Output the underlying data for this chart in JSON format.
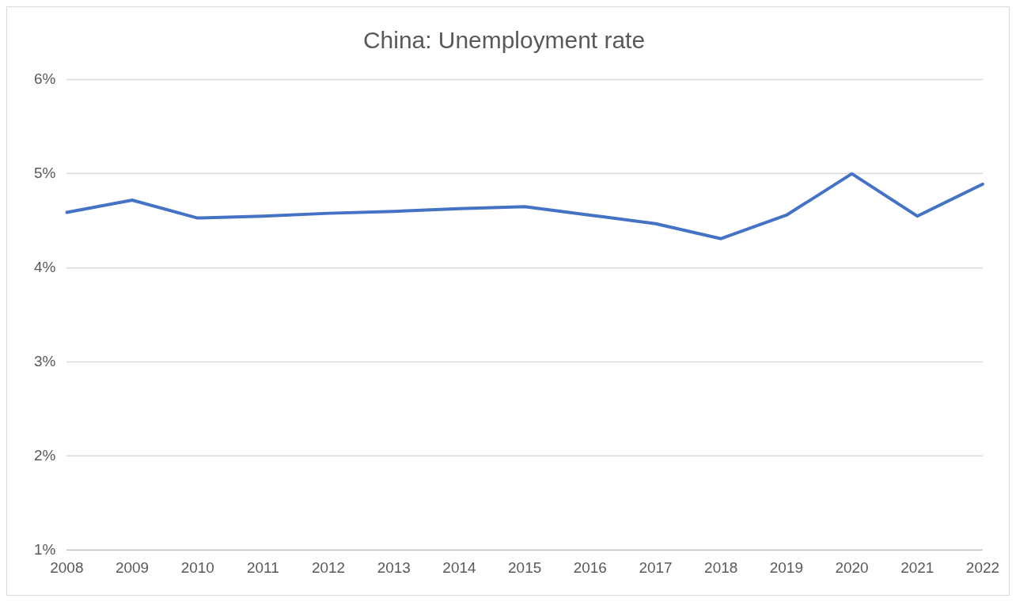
{
  "chart_data": {
    "type": "line",
    "title": "China: Unemployment rate",
    "categories": [
      "2008",
      "2009",
      "2010",
      "2011",
      "2012",
      "2013",
      "2014",
      "2015",
      "2016",
      "2017",
      "2018",
      "2019",
      "2020",
      "2021",
      "2022"
    ],
    "series": [
      {
        "color": "#4472c4",
        "values": [
          4.59,
          4.72,
          4.53,
          4.55,
          4.58,
          4.6,
          4.63,
          4.65,
          4.56,
          4.47,
          4.31,
          4.56,
          5.0,
          4.55,
          4.89
        ]
      }
    ],
    "ylim": [
      1,
      6
    ],
    "yticks": [
      {
        "value": 1,
        "label": "1%"
      },
      {
        "value": 2,
        "label": "2%"
      },
      {
        "value": 3,
        "label": "3%"
      },
      {
        "value": 4,
        "label": "4%"
      },
      {
        "value": 5,
        "label": "5%"
      },
      {
        "value": 6,
        "label": "6%"
      }
    ],
    "grid": "y",
    "legend": false,
    "marker": "none",
    "line_style": "solid"
  }
}
